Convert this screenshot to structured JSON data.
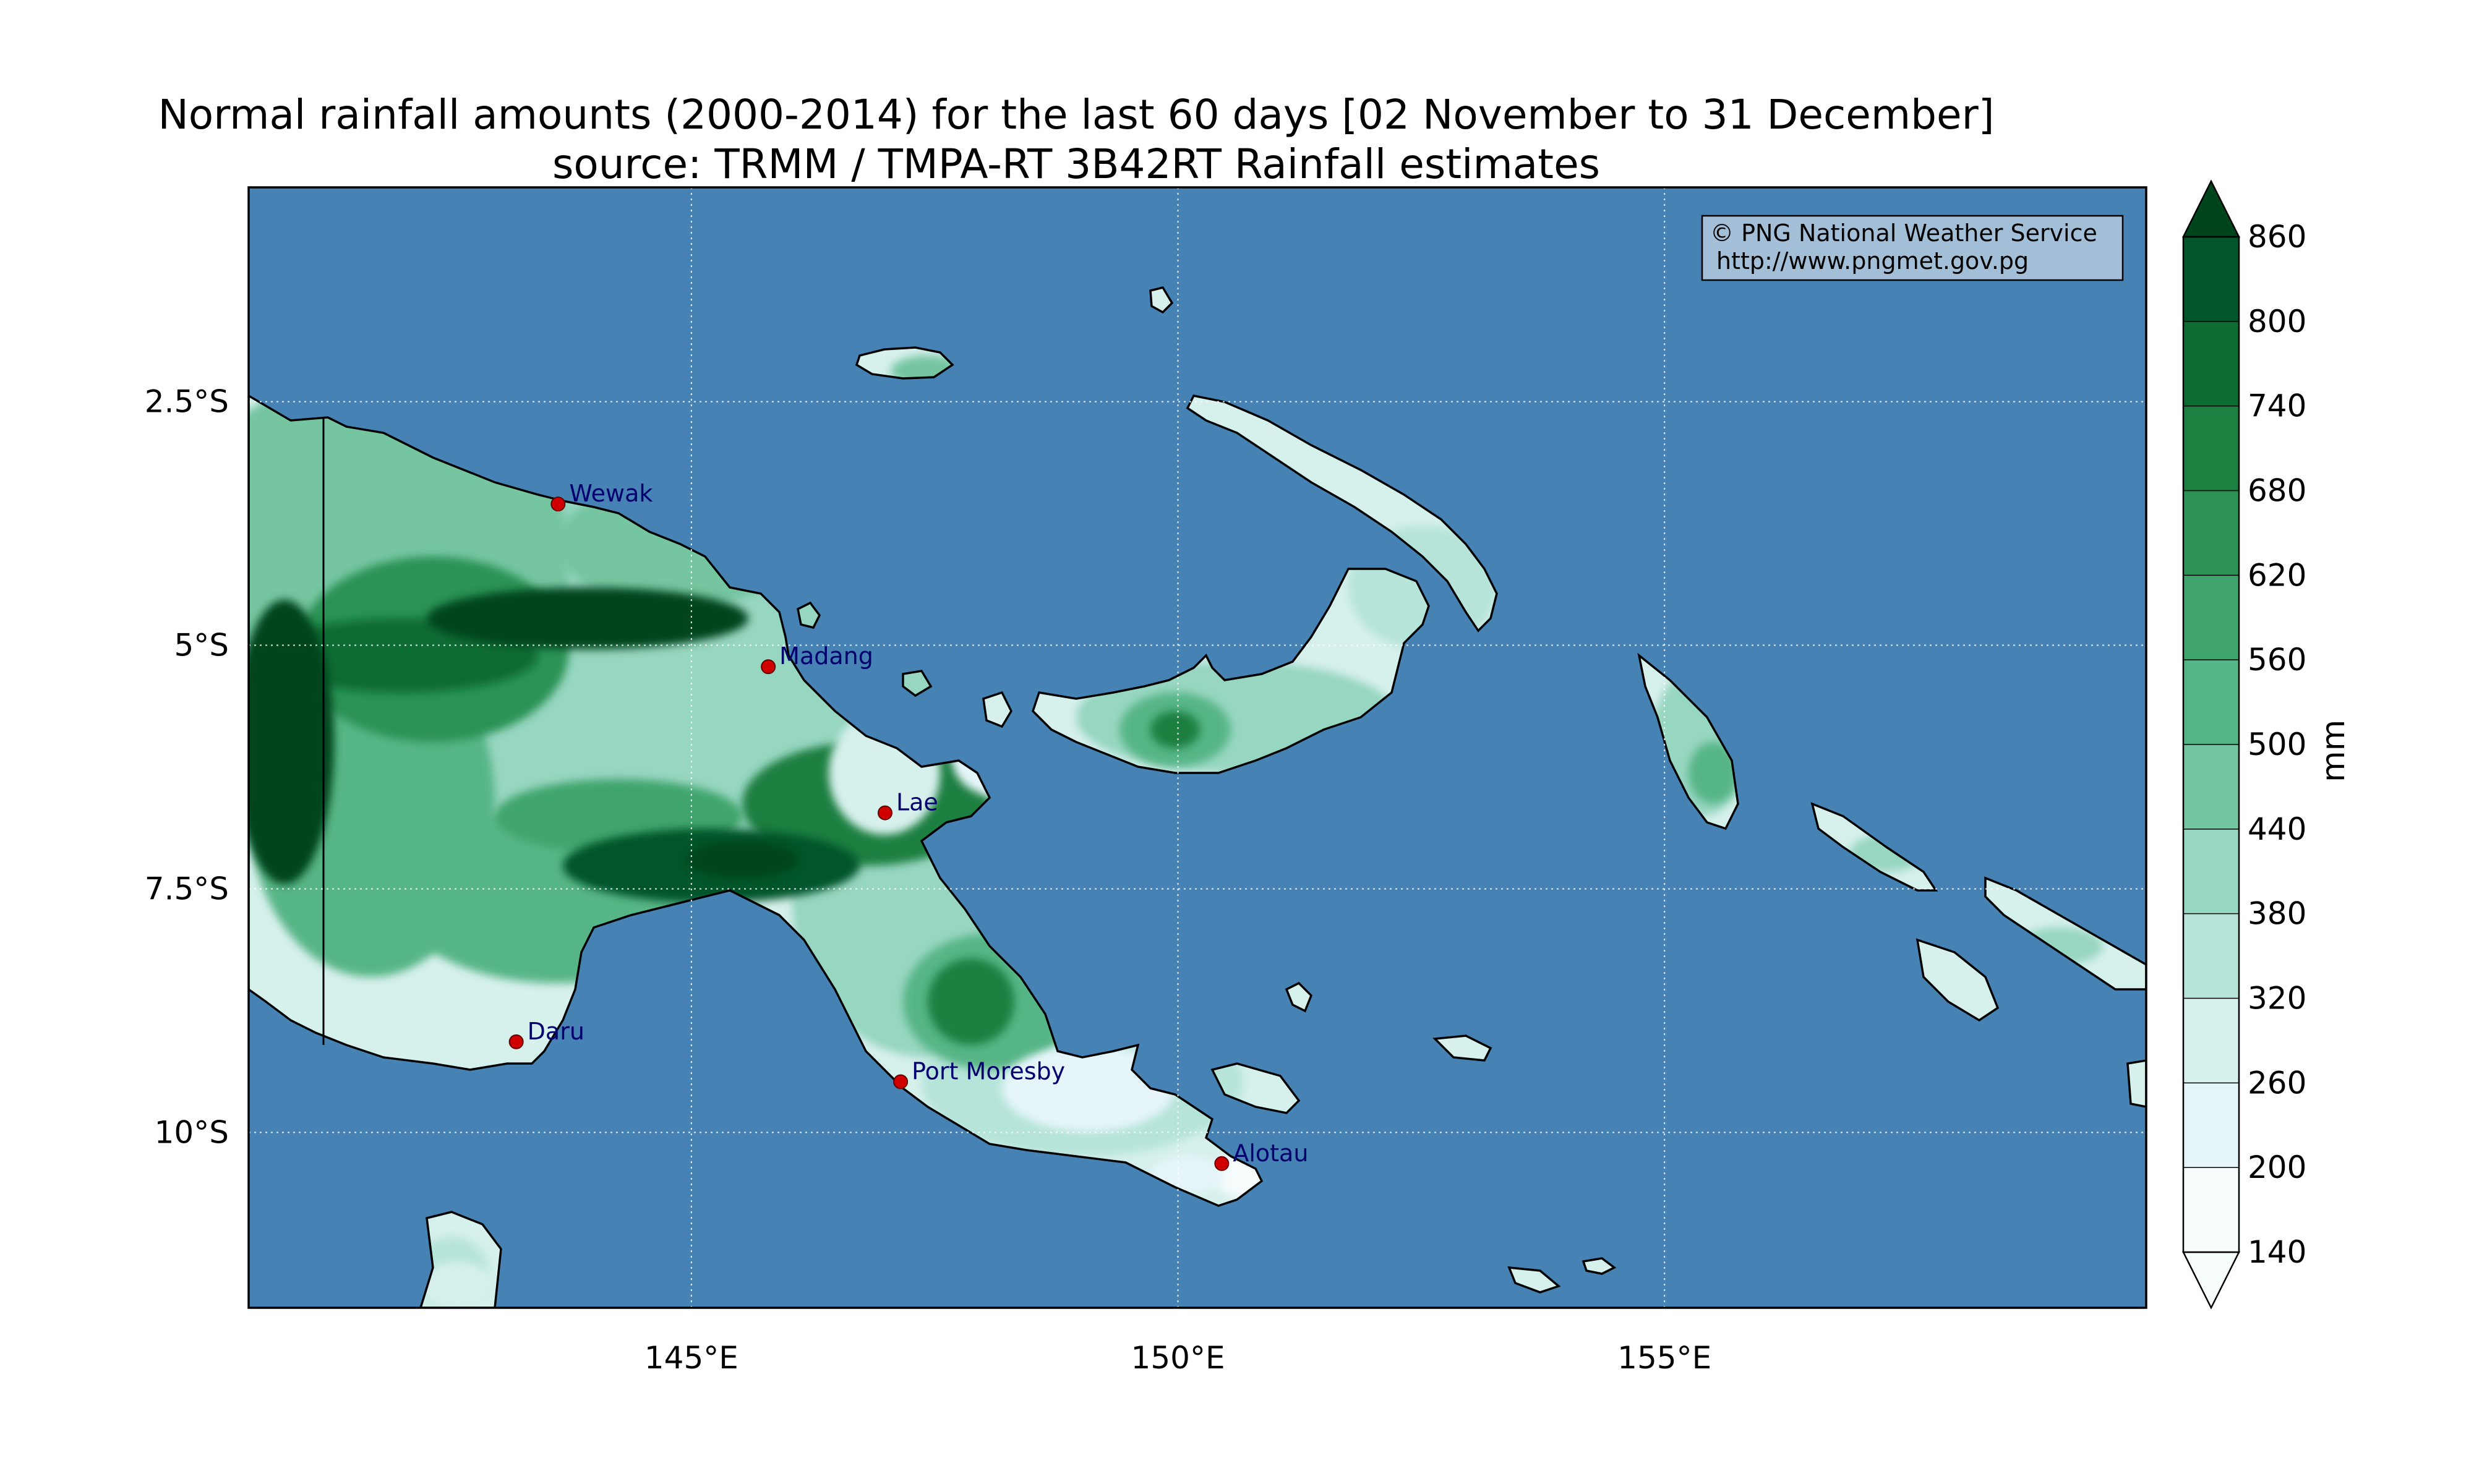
{
  "title": "Normal rainfall amounts (2000-2014) for the last 60 days [02 November to 31 December]",
  "subtitle": "source: TRMM / TMPA-RT 3B42RT Rainfall estimates",
  "credit": {
    "line1": "© PNG National Weather Service",
    "line2": "http://www.pngmet.gov.pg"
  },
  "axes": {
    "lon_ticks": [
      {
        "label": "145°E",
        "value": 145
      },
      {
        "label": "150°E",
        "value": 150
      },
      {
        "label": "155°E",
        "value": 155
      }
    ],
    "lat_ticks": [
      {
        "label": "2.5°S",
        "value": -2.5
      },
      {
        "label": "5°S",
        "value": -5
      },
      {
        "label": "7.5°S",
        "value": -7.5
      },
      {
        "label": "10°S",
        "value": -10
      }
    ],
    "lon_range": [
      140.45,
      159.95
    ],
    "lat_range": [
      -11.8,
      -0.3
    ],
    "grid": true,
    "grid_style": "dotted-white"
  },
  "colorbar": {
    "label": "mm",
    "levels": [
      "140",
      "200",
      "260",
      "320",
      "380",
      "440",
      "500",
      "560",
      "620",
      "680",
      "740",
      "800",
      "860"
    ],
    "colors": [
      "#f7fcfd",
      "#e5f5f9",
      "#d6f0ec",
      "#b6e4d9",
      "#97d6c1",
      "#74c5a1",
      "#56b586",
      "#3fa56c",
      "#2c9355",
      "#1d7f40",
      "#0c6c31",
      "#00552a",
      "#00441b"
    ],
    "extend": "both"
  },
  "map_colors": {
    "ocean": "#4682b4",
    "frame": "#000000",
    "marker": "#d00000",
    "city_label": "#00006e",
    "credit_box": "#a3bfd8"
  },
  "cities": [
    {
      "name": "Wewak",
      "lon": 143.63,
      "lat": -3.55
    },
    {
      "name": "Madang",
      "lon": 145.79,
      "lat": -5.22
    },
    {
      "name": "Lae",
      "lon": 146.99,
      "lat": -6.72
    },
    {
      "name": "Daru",
      "lon": 143.2,
      "lat": -9.07
    },
    {
      "name": "Port Moresby",
      "lon": 147.15,
      "lat": -9.48
    },
    {
      "name": "Alotau",
      "lon": 150.45,
      "lat": -10.32
    }
  ]
}
